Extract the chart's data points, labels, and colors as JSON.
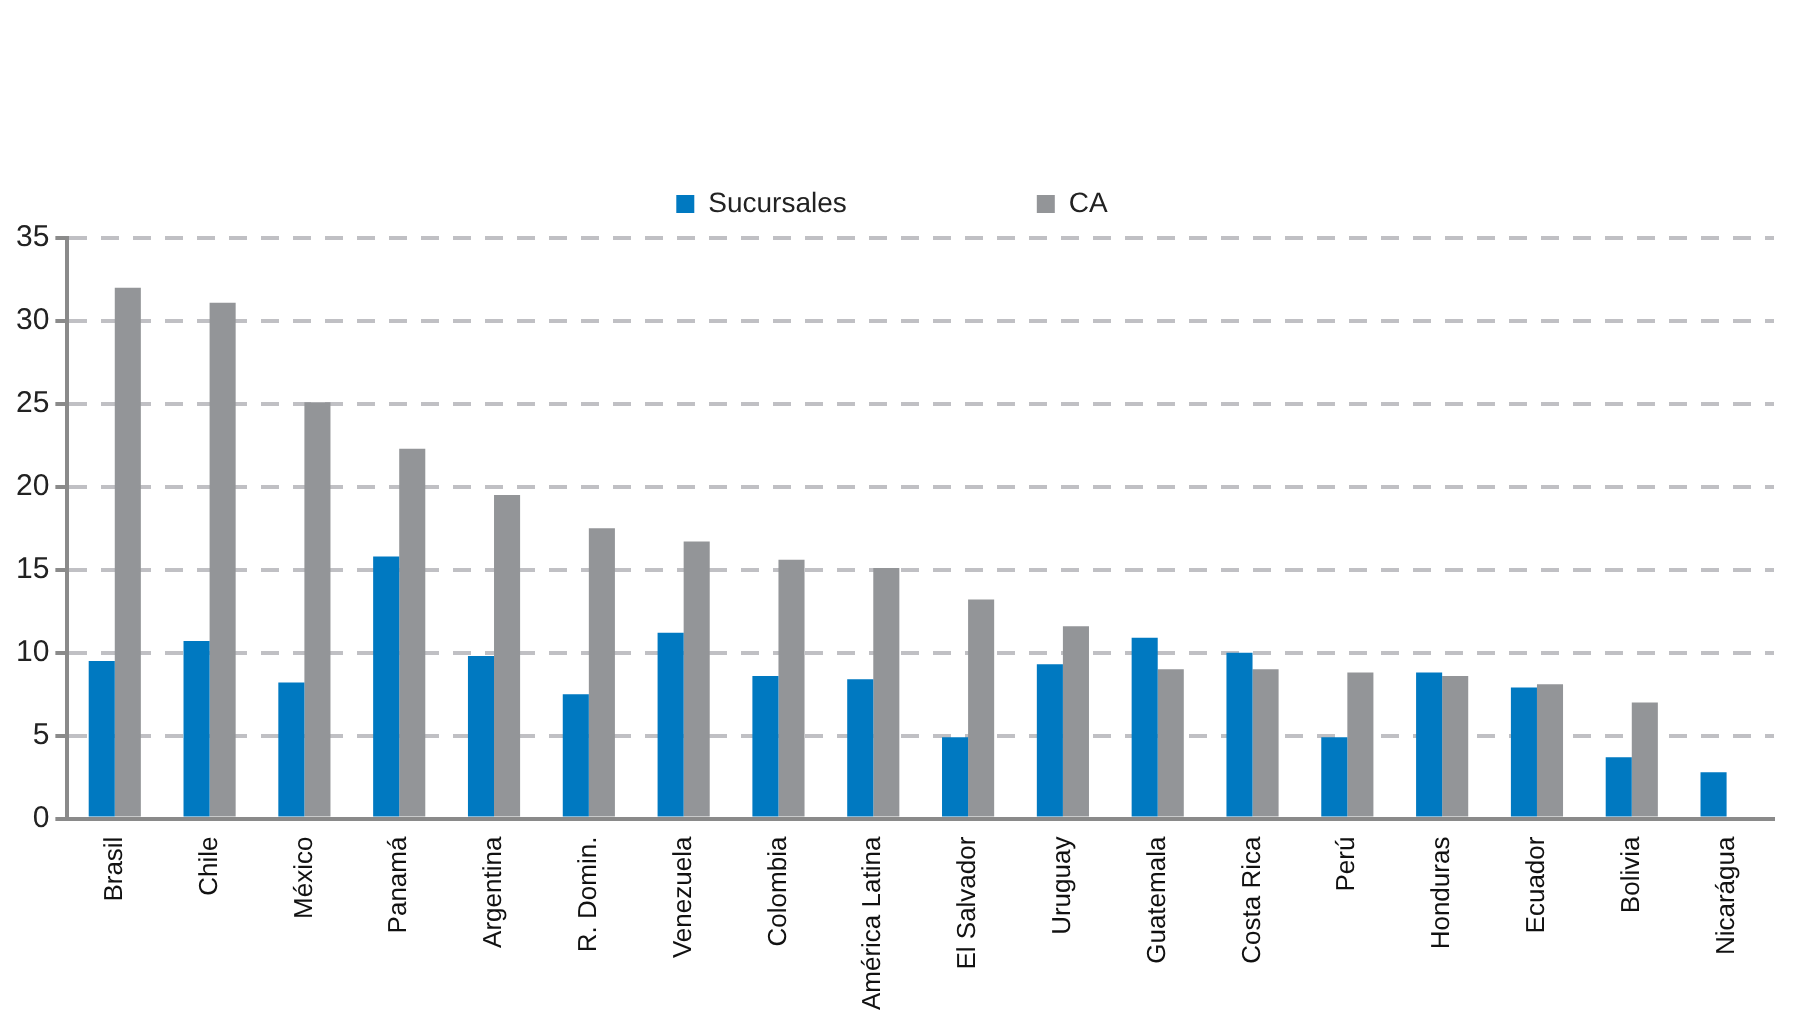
{
  "chart_data": {
    "type": "bar",
    "categories": [
      "Brasil",
      "Chile",
      "México",
      "Panamá",
      "Argentina",
      "R. Domin.",
      "Venezuela",
      "Colombia",
      "América Latina",
      "El Salvador",
      "Uruguay",
      "Guatemala",
      "Costa Rica",
      "Perú",
      "Honduras",
      "Ecuador",
      "Bolivia",
      "Nicarágua"
    ],
    "series": [
      {
        "name": "Sucursales",
        "color": "#0079c1",
        "values": [
          9.5,
          10.7,
          8.2,
          15.8,
          9.8,
          7.5,
          11.2,
          8.6,
          8.4,
          4.9,
          9.3,
          10.9,
          10.0,
          4.9,
          8.8,
          7.9,
          3.7,
          2.8
        ]
      },
      {
        "name": "CA",
        "color": "#939598",
        "values": [
          32.0,
          31.1,
          25.1,
          22.3,
          19.5,
          17.5,
          16.7,
          15.6,
          15.1,
          13.2,
          11.6,
          9.0,
          9.0,
          8.8,
          8.6,
          8.1,
          7.0,
          null
        ]
      }
    ],
    "ylim": [
      0,
      35
    ],
    "yticks": [
      0,
      5,
      10,
      15,
      20,
      25,
      30,
      35
    ],
    "grid": "y",
    "legend": "top"
  }
}
